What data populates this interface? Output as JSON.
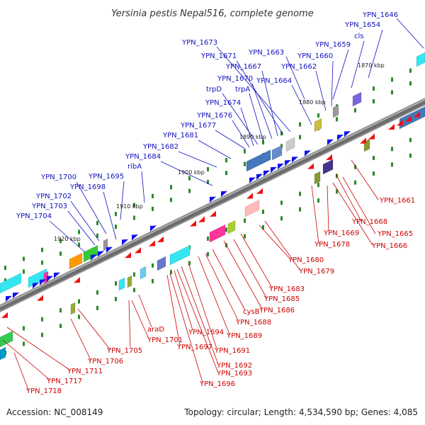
{
  "title": "Yersinia pestis Nepal516, complete genome",
  "footer": {
    "accession": "Accession: NC_008149",
    "summary": "Topology: circular; Length: 4,534,590 bp; Genes: 4,085"
  },
  "colors": {
    "forward_label": "#1010c0",
    "reverse_label": "#cc0000",
    "forward_arrow": "#1010ee",
    "reverse_arrow": "#ee1010",
    "backbone": "#888888"
  },
  "scale_marks": [
    "1870 kbp",
    "1880 kbp",
    "1890 kbp",
    "1900 kbp",
    "1910 kbp",
    "1920 kbp"
  ],
  "forward_genes": [
    "YPN_1646",
    "YPN_1654",
    "cls",
    "YPN_1659",
    "YPN_1660",
    "YPN_1662",
    "YPN_1663",
    "YPN_1664",
    "YPN_1673",
    "YPN_1671",
    "YPN_1667",
    "YPN_1670",
    "trpA",
    "trpD",
    "YPN_1674",
    "YPN_1676",
    "YPN_1677",
    "YPN_1681",
    "YPN_1682",
    "YPN_1684",
    "ribA",
    "YPN_1695",
    "YPN_1700",
    "YPN_1698",
    "YPN_1702",
    "YPN_1703",
    "YPN_1704"
  ],
  "reverse_genes": [
    "YPN_1661",
    "YPN_1668",
    "YPN_1665",
    "YPN_1669",
    "YPN_1666",
    "YPN_1678",
    "YPN_1680",
    "YPN_1679",
    "YPN_1683",
    "YPN_1685",
    "cysB",
    "YPN_1686",
    "YPN_1688",
    "YPN_1689",
    "YPN_1694",
    "araD",
    "YPN_1701",
    "YPN_1691",
    "YPN_1697",
    "YPN_1692",
    "YPN_1693",
    "YPN_1696",
    "YPN_1705",
    "YPN_1706",
    "YPN_1711",
    "YPN_1717",
    "YPN_1718"
  ]
}
